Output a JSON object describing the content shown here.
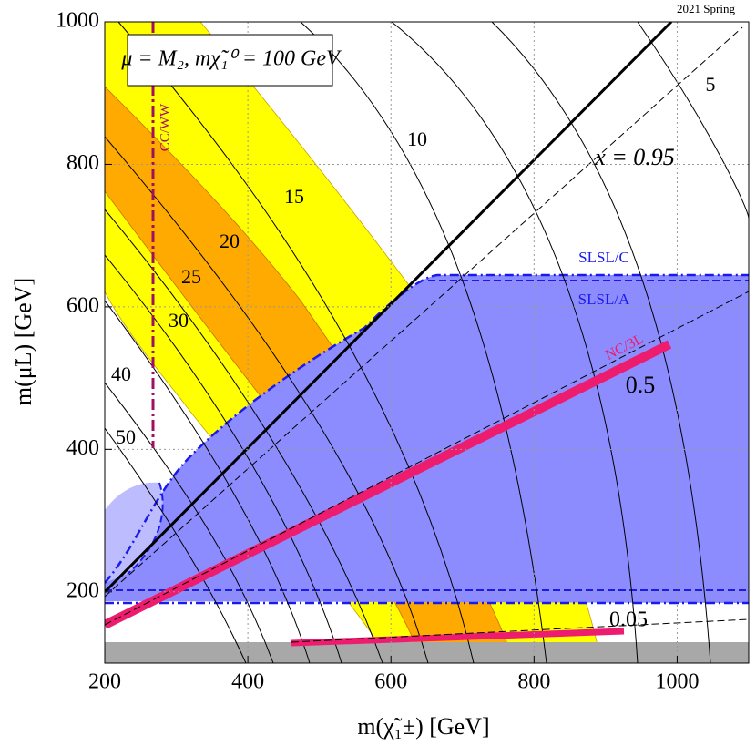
{
  "chart_data": {
    "type": "contour",
    "title": "μ = M₂,  mχ̃₁⁰ = 100 GeV",
    "x_label": "m(χ̃₁±) [GeV]",
    "y_label": "m(μ̃L) [GeV]",
    "xlim": [
      200,
      1100
    ],
    "ylim": [
      100,
      1000
    ],
    "xticks": [
      200,
      400,
      600,
      800,
      1000
    ],
    "yticks": [
      200,
      400,
      600,
      800,
      1000
    ],
    "grid": true,
    "annotations": [
      "2021 Spring",
      "CC/WW",
      "SLSL/C",
      "SLSL/A",
      "NC/3L",
      "x = 0.95",
      "0.5",
      "0.05"
    ],
    "contour_labels": [
      "5",
      "10",
      "15",
      "20",
      "25",
      "30",
      "40",
      "50"
    ]
  }
}
